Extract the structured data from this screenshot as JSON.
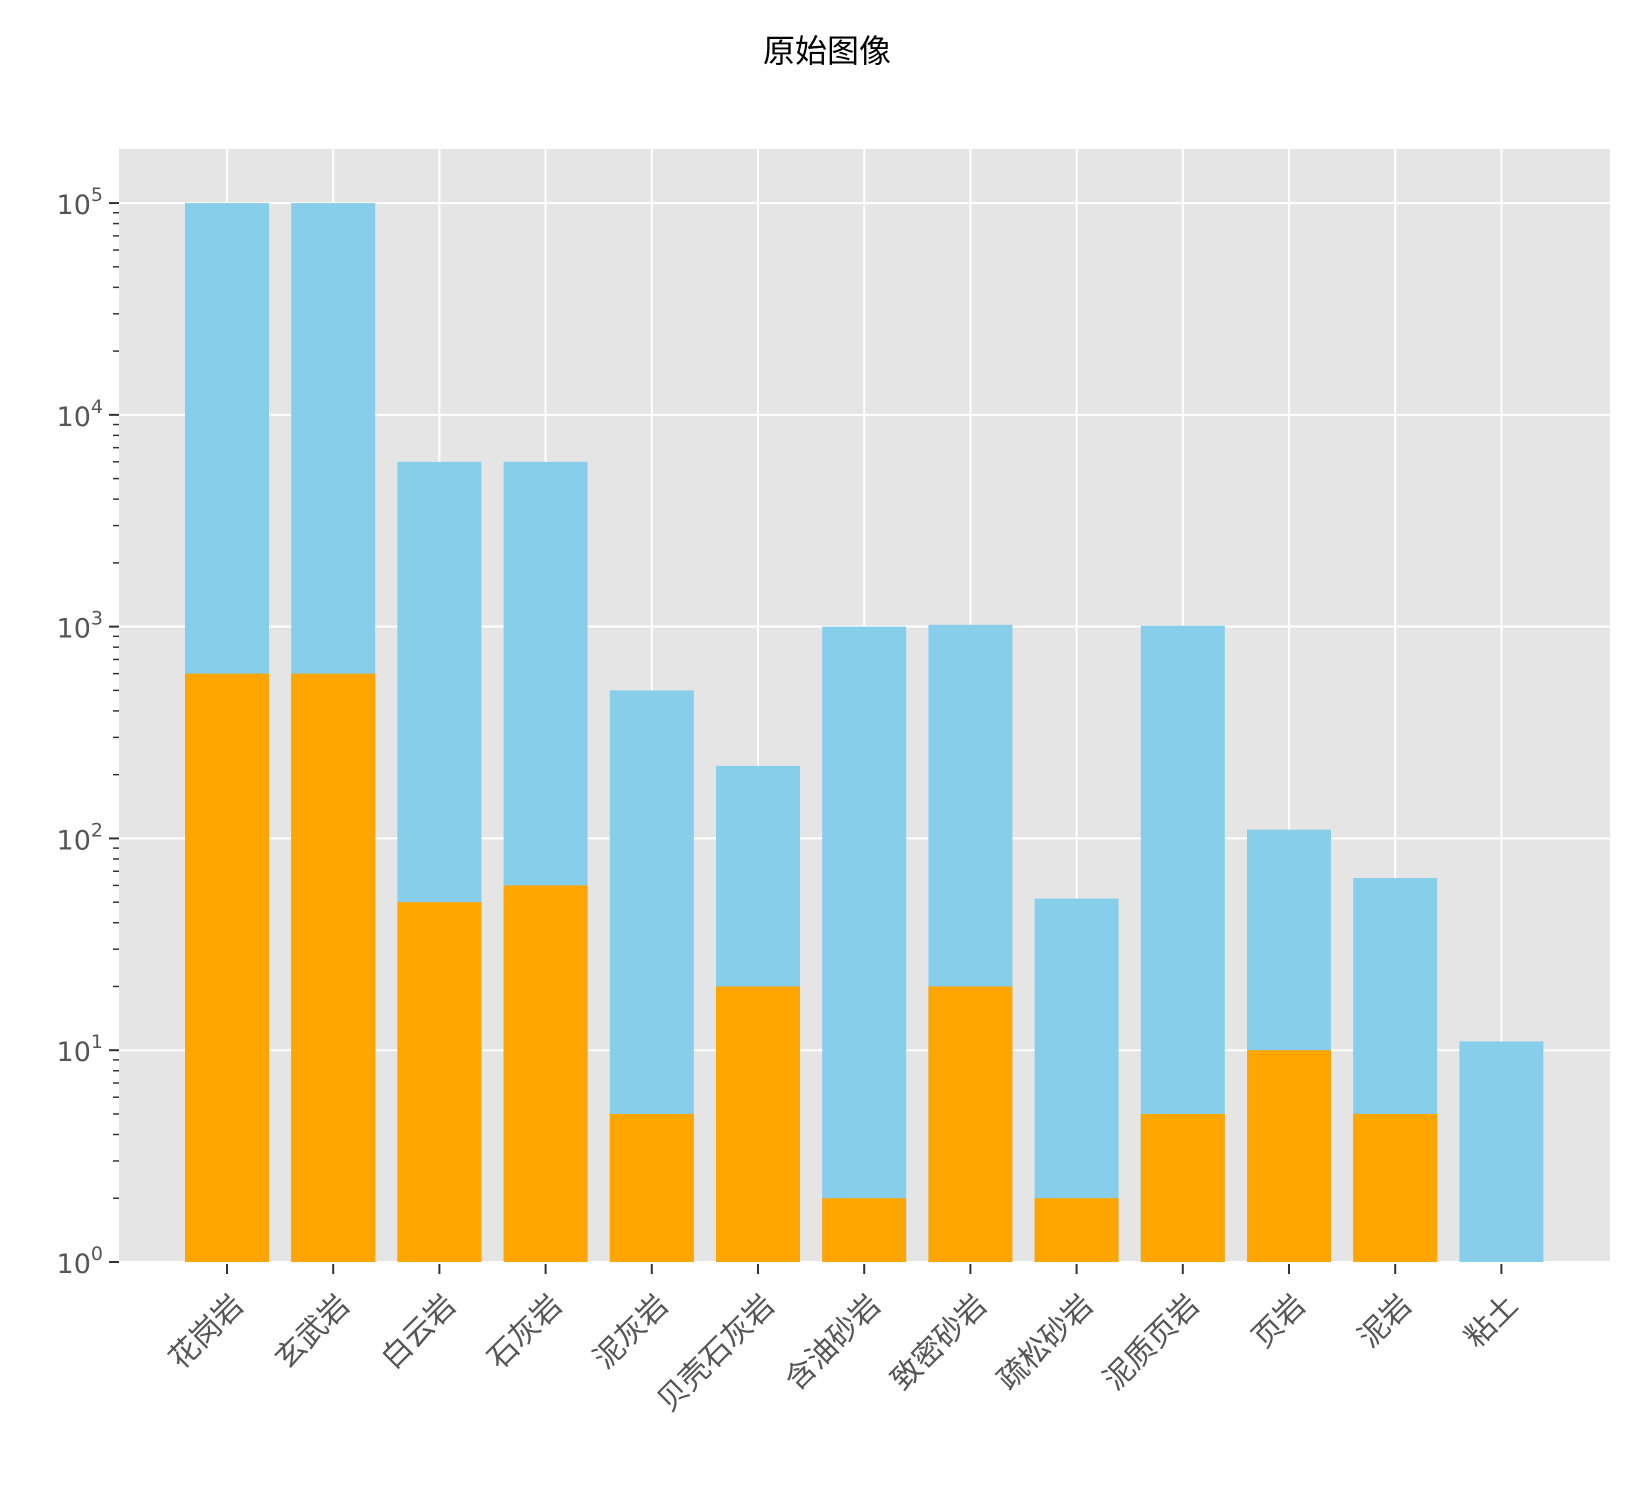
{
  "chart_data": {
    "type": "bar",
    "stacked": false,
    "title": "原始图像",
    "xlabel": "",
    "ylabel": "",
    "yscale": "log",
    "ylim": [
      1,
      180000
    ],
    "grid": true,
    "legend": "none",
    "y_ticks": [
      {
        "value": 1,
        "base": "10",
        "exp": "0"
      },
      {
        "value": 10,
        "base": "10",
        "exp": "1"
      },
      {
        "value": 100,
        "base": "10",
        "exp": "2"
      },
      {
        "value": 1000,
        "base": "10",
        "exp": "3"
      },
      {
        "value": 10000,
        "base": "10",
        "exp": "4"
      },
      {
        "value": 100000,
        "base": "10",
        "exp": "5"
      }
    ],
    "categories": [
      "花岗岩",
      "玄武岩",
      "白云岩",
      "石灰岩",
      "泥灰岩",
      "贝壳石灰岩",
      "含油砂岩",
      "致密砂岩",
      "疏松砂岩",
      "泥质页岩",
      "页岩",
      "泥岩",
      "粘土"
    ],
    "series": [
      {
        "color": "#87CEEB",
        "values": [
          100000,
          100000,
          6000,
          6000,
          500,
          220,
          1000,
          1020,
          52,
          1010,
          110,
          65,
          11
        ]
      },
      {
        "color": "#FFA500",
        "values": [
          600,
          600,
          50,
          60,
          5,
          20,
          2,
          20,
          2,
          5,
          10,
          5,
          1
        ]
      }
    ],
    "colors": {
      "plot_background": "#E5E5E5",
      "grid": "#FFFFFF",
      "tick_text": "#555555"
    }
  }
}
